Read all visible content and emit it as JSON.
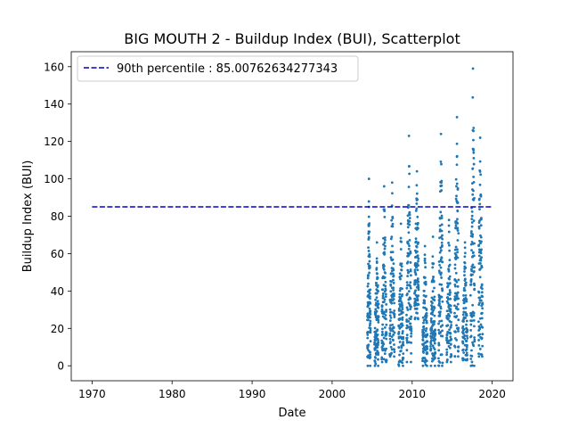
{
  "chart_data": {
    "type": "scatter",
    "title": "BIG MOUTH 2 - Buildup Index (BUI), Scatterplot",
    "xlabel": "Date",
    "ylabel": "Buildup Index (BUI)",
    "xlim": [
      1967.4,
      2022.6
    ],
    "ylim": [
      -8,
      168
    ],
    "x_ticks": [
      1970,
      1980,
      1990,
      2000,
      2010,
      2020
    ],
    "y_ticks": [
      0,
      20,
      40,
      60,
      80,
      100,
      120,
      140,
      160
    ],
    "legend": {
      "placement": "top-left",
      "entries": [
        "90th percentile : 85.00762634277343"
      ]
    },
    "grid": false,
    "point_color": "#1f77b4",
    "reference_line": {
      "label": "90th percentile : 85.00762634277343",
      "y": 85.00762634277343,
      "x_start": 1970,
      "x_end": 2020,
      "color": "#0000cc",
      "style": "dashed"
    },
    "seasons": [
      {
        "x_start": 2004.4,
        "x_end": 2004.8,
        "min": 0,
        "max": 100,
        "peak": 2004.6
      },
      {
        "x_start": 2005.3,
        "x_end": 2005.8,
        "min": 0,
        "max": 66,
        "peak": 2005.6
      },
      {
        "x_start": 2006.2,
        "x_end": 2006.8,
        "min": 2,
        "max": 96,
        "peak": 2006.5
      },
      {
        "x_start": 2007.2,
        "x_end": 2007.8,
        "min": 5,
        "max": 98,
        "peak": 2007.5
      },
      {
        "x_start": 2008.3,
        "x_end": 2008.9,
        "min": 0,
        "max": 76,
        "peak": 2008.6
      },
      {
        "x_start": 2009.3,
        "x_end": 2009.9,
        "min": 2,
        "max": 123,
        "peak": 2009.6
      },
      {
        "x_start": 2010.3,
        "x_end": 2010.8,
        "min": 25,
        "max": 104,
        "peak": 2010.6
      },
      {
        "x_start": 2011.3,
        "x_end": 2011.9,
        "min": 0,
        "max": 64,
        "peak": 2011.6
      },
      {
        "x_start": 2012.3,
        "x_end": 2012.9,
        "min": 0,
        "max": 69,
        "peak": 2012.6
      },
      {
        "x_start": 2013.3,
        "x_end": 2013.8,
        "min": 0,
        "max": 124,
        "peak": 2013.6
      },
      {
        "x_start": 2014.3,
        "x_end": 2014.9,
        "min": 2,
        "max": 78,
        "peak": 2014.6
      },
      {
        "x_start": 2015.3,
        "x_end": 2015.8,
        "min": 5,
        "max": 133,
        "peak": 2015.6
      },
      {
        "x_start": 2016.3,
        "x_end": 2016.9,
        "min": 3,
        "max": 66,
        "peak": 2016.6
      },
      {
        "x_start": 2017.3,
        "x_end": 2017.8,
        "min": 0,
        "max": 159,
        "peak": 2017.6
      },
      {
        "x_start": 2018.3,
        "x_end": 2018.8,
        "min": 5,
        "max": 122,
        "peak": 2018.5
      }
    ]
  }
}
